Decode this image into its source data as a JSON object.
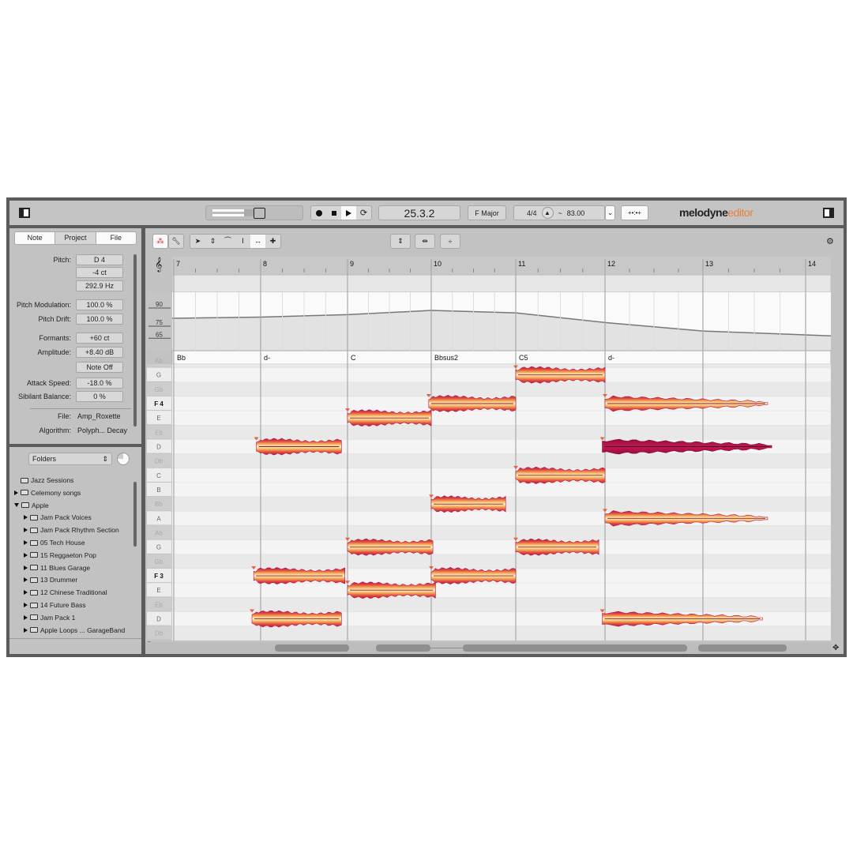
{
  "app": {
    "logo_main": "melodyne",
    "logo_sub": "editor",
    "accent": "#e8823a"
  },
  "transport": {
    "position": "25.3.2",
    "key": "F Major",
    "meter": "4/4",
    "tempo_prefix": "~",
    "tempo": "83.00",
    "buttons": [
      "record",
      "stop",
      "play",
      "loop"
    ]
  },
  "left_panel": {
    "tabs": [
      "Note",
      "Project",
      "File"
    ],
    "active_tab": "Note",
    "properties": [
      {
        "label": "Pitch:",
        "value": "D 4"
      },
      {
        "label": "",
        "value": "-4 ct"
      },
      {
        "label": "",
        "value": "292.9 Hz"
      },
      {
        "label": "Pitch Modulation:",
        "value": "100.0 %"
      },
      {
        "label": "Pitch Drift:",
        "value": "100.0 %"
      },
      {
        "label": "Formants:",
        "value": "+60 ct"
      },
      {
        "label": "Amplitude:",
        "value": "+8.40 dB"
      },
      {
        "label": "",
        "value": "Note Off"
      },
      {
        "label": "Attack Speed:",
        "value": "-18.0 %"
      },
      {
        "label": "Sibilant Balance:",
        "value": "0 %"
      }
    ],
    "file_label": "File:",
    "file_value": "Amp_Roxette",
    "algorithm_label": "Algorithm:",
    "algorithm_value": "Polyph... Decay"
  },
  "browser": {
    "dropdown": "Folders",
    "items": [
      {
        "name": "Jazz Sessions",
        "level": 0,
        "expand": "none"
      },
      {
        "name": "Celemony songs",
        "level": 0,
        "expand": "collapsed"
      },
      {
        "name": "Apple",
        "level": 0,
        "expand": "expanded"
      },
      {
        "name": "Jam Pack Voices",
        "level": 1,
        "expand": "collapsed"
      },
      {
        "name": "Jam Pack Rhythm Section",
        "level": 1,
        "expand": "collapsed"
      },
      {
        "name": "05 Tech House",
        "level": 1,
        "expand": "collapsed"
      },
      {
        "name": "15 Reggaeton Pop",
        "level": 1,
        "expand": "collapsed"
      },
      {
        "name": "11 Blues Garage",
        "level": 1,
        "expand": "collapsed"
      },
      {
        "name": "13 Drummer",
        "level": 1,
        "expand": "collapsed"
      },
      {
        "name": "12 Chinese Traditional",
        "level": 1,
        "expand": "collapsed"
      },
      {
        "name": "14 Future Bass",
        "level": 1,
        "expand": "collapsed"
      },
      {
        "name": "Jam Pack 1",
        "level": 1,
        "expand": "collapsed"
      },
      {
        "name": "Apple Loops ... GarageBand",
        "level": 1,
        "expand": "collapsed"
      }
    ]
  },
  "editor": {
    "bars": [
      "7",
      "8",
      "9",
      "10",
      "11",
      "12",
      "13",
      "14"
    ],
    "tempo_ticks": [
      "90",
      "75",
      "65"
    ],
    "tempo_curve": [
      [
        7,
        81.5
      ],
      [
        8,
        82.5
      ],
      [
        9,
        84.5
      ],
      [
        10,
        88
      ],
      [
        11,
        86
      ],
      [
        12,
        78
      ],
      [
        13,
        71
      ],
      [
        14,
        67
      ]
    ],
    "chords": [
      {
        "bar": 7,
        "name": "Bb"
      },
      {
        "bar": 8,
        "name": "d-"
      },
      {
        "bar": 9,
        "name": "C"
      },
      {
        "bar": 10,
        "name": "Bbsus2"
      },
      {
        "bar": 11,
        "name": "C5"
      },
      {
        "bar": 12,
        "name": "d-"
      }
    ],
    "keys": [
      "Ab",
      "G",
      "Gb",
      "F 4",
      "E",
      "Eb",
      "D",
      "Db",
      "C",
      "B",
      "Bb",
      "A",
      "Ab",
      "G",
      "Gb",
      "F 3",
      "E",
      "Eb",
      "D",
      "Db"
    ],
    "notes": [
      {
        "pitch": "D4",
        "start": 7.95,
        "end": 8.93
      },
      {
        "pitch": "F3",
        "start": 7.92,
        "end": 8.97
      },
      {
        "pitch": "D3",
        "start": 7.9,
        "end": 8.93
      },
      {
        "pitch": "E4",
        "start": 9.0,
        "end": 10.0
      },
      {
        "pitch": "G3",
        "start": 9.0,
        "end": 10.02
      },
      {
        "pitch": "E3",
        "start": 9.0,
        "end": 10.05
      },
      {
        "pitch": "F4",
        "start": 9.97,
        "end": 11.0
      },
      {
        "pitch": "Bb3",
        "start": 10.0,
        "end": 10.88
      },
      {
        "pitch": "F3",
        "start": 10.0,
        "end": 11.0
      },
      {
        "pitch": "G4",
        "start": 11.0,
        "end": 12.0
      },
      {
        "pitch": "C4",
        "start": 11.0,
        "end": 12.0
      },
      {
        "pitch": "G3",
        "start": 11.0,
        "end": 11.93
      },
      {
        "pitch": "F4",
        "start": 12.0,
        "end": 13.63
      },
      {
        "pitch": "D4",
        "start": 11.97,
        "end": 13.67,
        "selected": true
      },
      {
        "pitch": "A3",
        "start": 12.0,
        "end": 13.63
      },
      {
        "pitch": "D3",
        "start": 11.97,
        "end": 13.58
      }
    ]
  }
}
